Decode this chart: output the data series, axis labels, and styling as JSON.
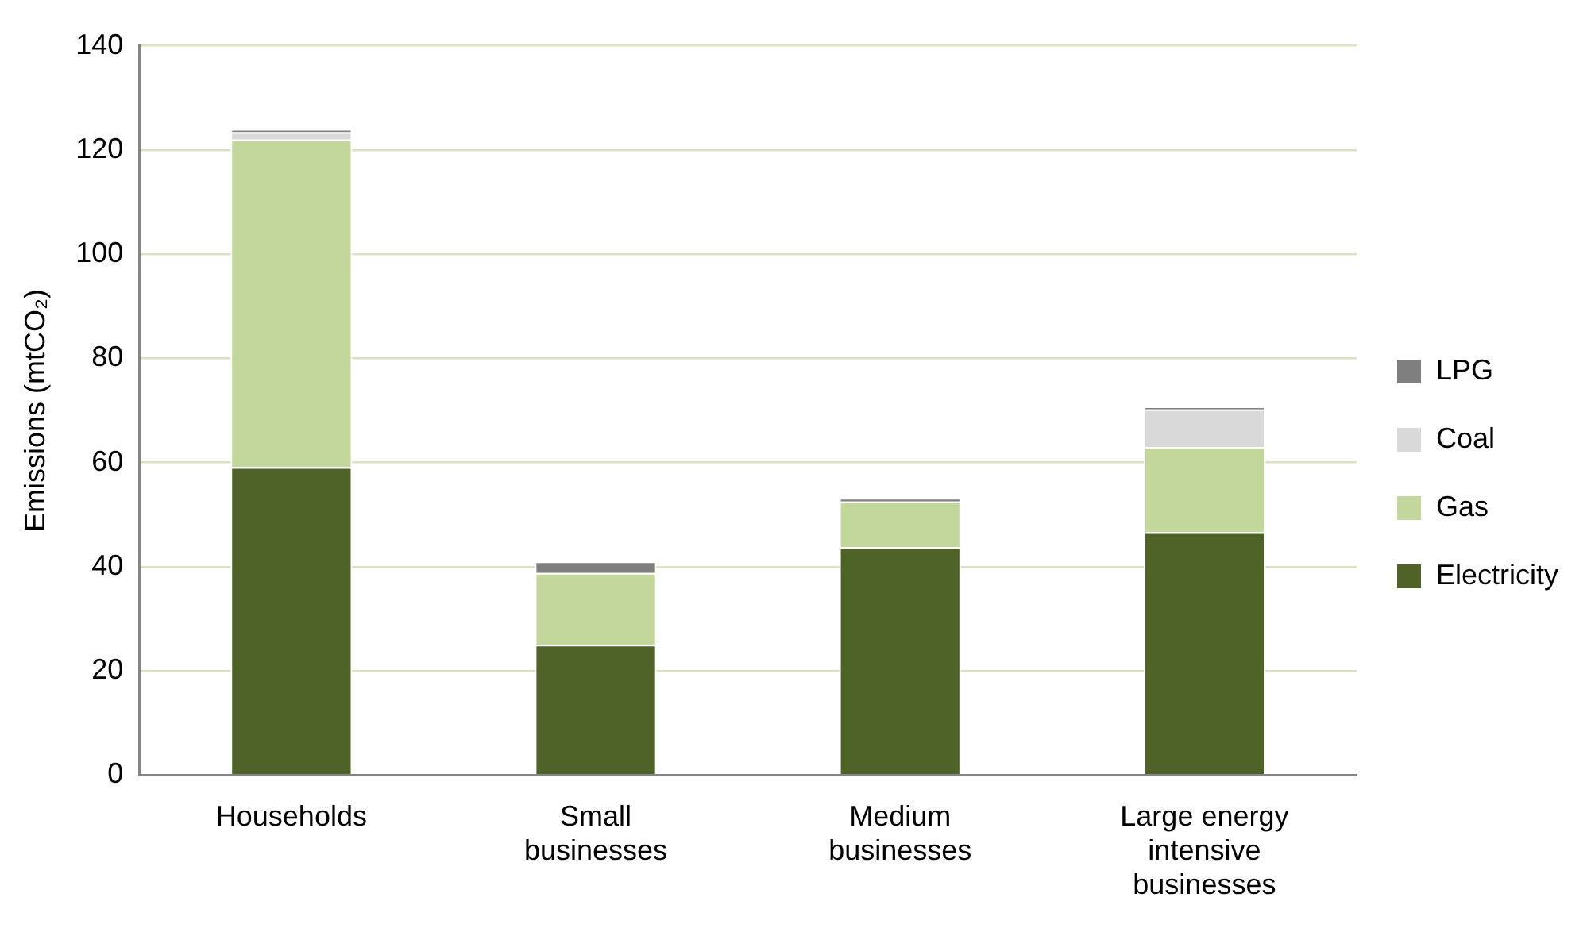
{
  "chart_data": {
    "type": "bar",
    "stacked": true,
    "ylabel": "Emissions (mtCO₂)",
    "categories": [
      "Households",
      "Small businesses",
      "Medium businesses",
      "Large energy intensive businesses"
    ],
    "series": [
      {
        "name": "Electricity",
        "color": "#4f6228",
        "values": [
          59.1,
          25,
          43.8,
          46.6
        ]
      },
      {
        "name": "Gas",
        "color": "#c3d69b",
        "values": [
          62.9,
          13.8,
          8.7,
          16.4
        ]
      },
      {
        "name": "Coal",
        "color": "#d9d9d9",
        "values": [
          1.4,
          0,
          0,
          7.2
        ]
      },
      {
        "name": "LPG",
        "color": "#7f7f7f",
        "values": [
          0.6,
          2.2,
          0.7,
          0.5
        ]
      }
    ],
    "ylim": [
      0,
      140
    ],
    "yticks": [
      0,
      20,
      40,
      60,
      80,
      100,
      120,
      140
    ],
    "grid": "y",
    "legend": "right"
  }
}
